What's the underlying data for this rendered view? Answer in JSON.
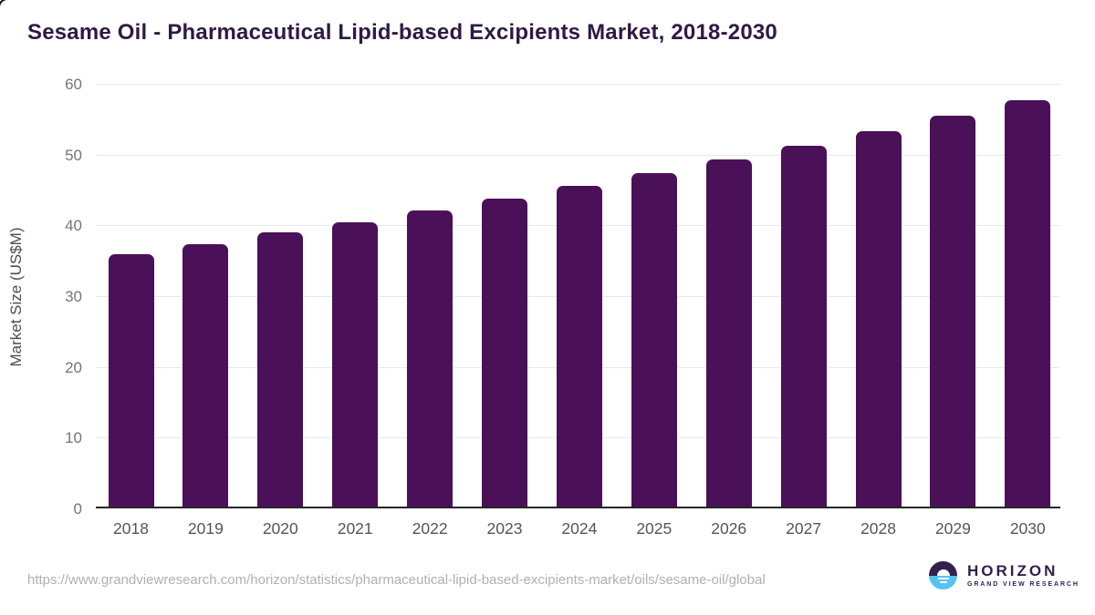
{
  "page": {
    "source_url": "https://www.grandviewresearch.com/horizon/statistics/pharmaceutical-lipid-based-excipients-market/oils/sesame-oil/global"
  },
  "logo": {
    "name": "HORIZON",
    "tagline": "GRAND VIEW RESEARCH"
  },
  "theme": {
    "bar_color": "#4a1058",
    "title_color": "#2e1a45",
    "tick_label_color": "#757575",
    "x_label_color": "#555555",
    "gridline_color": "#e8e8e8",
    "axis_line_color": "#262626",
    "url_color": "#b0b0b0",
    "logo_purple": "#33204f",
    "logo_blue": "#56c3f0"
  },
  "chart_data": {
    "type": "bar",
    "title": "Sesame Oil - Pharmaceutical Lipid-based Excipients Market, 2018-2030",
    "categories": [
      "2018",
      "2019",
      "2020",
      "2021",
      "2022",
      "2023",
      "2024",
      "2025",
      "2026",
      "2027",
      "2028",
      "2029",
      "2030"
    ],
    "values": [
      35.7,
      37.1,
      38.7,
      40.2,
      41.8,
      43.5,
      45.3,
      47.1,
      49.0,
      51.0,
      53.1,
      55.2,
      57.4
    ],
    "xlabel": "",
    "ylabel": "Market Size (US$M)",
    "ylim": [
      0,
      60
    ],
    "y_ticks": [
      0,
      10,
      20,
      30,
      40,
      50,
      60
    ],
    "grid": true,
    "legend": false
  }
}
